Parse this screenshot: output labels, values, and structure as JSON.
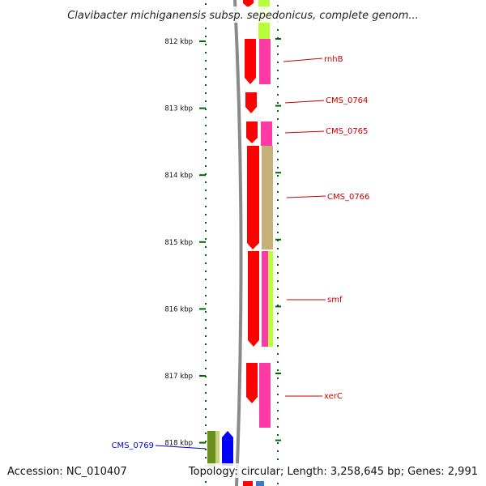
{
  "title": "Clavibacter michiganensis subsp. sepedonicus, complete genom...",
  "footer": {
    "accession": "Accession: NC_010407",
    "summary": "Topology: circular; Length: 3,258,645 bp; Genes: 2,991"
  },
  "axis_ticks": [
    "812 kbp",
    "813 kbp",
    "814 kbp",
    "815 kbp",
    "816 kbp",
    "817 kbp",
    "818 kbp"
  ],
  "genes": [
    {
      "name": "rnhB",
      "color": "#cc0000"
    },
    {
      "name": "CMS_0764",
      "color": "#cc0000"
    },
    {
      "name": "CMS_0765",
      "color": "#cc0000"
    },
    {
      "name": "CMS_0766",
      "color": "#cc0000"
    },
    {
      "name": "smf",
      "color": "#cc0000"
    },
    {
      "name": "xerC",
      "color": "#cc0000"
    },
    {
      "name": "CMS_0769",
      "color": "#0000cc"
    }
  ],
  "colors": {
    "cds_red": "#ff0000",
    "pink": "#ff3aa6",
    "lime": "#b6ff3a",
    "khaki": "#c6b278",
    "olive": "#6b8f1e",
    "blue": "#0000ff",
    "backbone": "#8a8a8a",
    "tick_green": "#006600"
  }
}
